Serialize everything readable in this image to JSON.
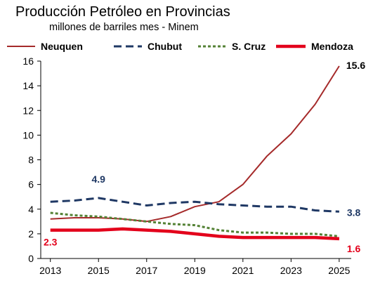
{
  "chart_data": {
    "type": "line",
    "title": "Producción Petróleo en Provincias",
    "subtitle": "millones de barriles mes - Minem",
    "x": [
      2013,
      2014,
      2015,
      2016,
      2017,
      2018,
      2019,
      2020,
      2021,
      2022,
      2023,
      2024,
      2025
    ],
    "xticks": [
      "2013",
      "2015",
      "2017",
      "2019",
      "2021",
      "2023",
      "2025"
    ],
    "yticks": [
      "0",
      "2",
      "4",
      "6",
      "8",
      "10",
      "12",
      "14",
      "16"
    ],
    "ylim": [
      0,
      16
    ],
    "xlim": [
      2012.6,
      2025.5
    ],
    "legend_position": "top",
    "grid": false,
    "series": [
      {
        "name": "Neuquen",
        "color": "#a52a2a",
        "style": "solid",
        "values": [
          3.2,
          3.3,
          3.3,
          3.2,
          3.0,
          3.4,
          4.2,
          4.6,
          6.0,
          8.3,
          10.1,
          12.5,
          15.6
        ]
      },
      {
        "name": "Chubut",
        "color": "#1f3864",
        "style": "dashed",
        "values": [
          4.6,
          4.7,
          4.9,
          4.6,
          4.3,
          4.5,
          4.6,
          4.4,
          4.3,
          4.2,
          4.2,
          3.9,
          3.8
        ]
      },
      {
        "name": "S. Cruz",
        "color": "#548235",
        "style": "dotted",
        "values": [
          3.7,
          3.5,
          3.4,
          3.2,
          3.0,
          2.8,
          2.7,
          2.3,
          2.1,
          2.1,
          2.0,
          2.0,
          1.8
        ]
      },
      {
        "name": "Mendoza",
        "color": "#e3001b",
        "style": "thick",
        "values": [
          2.3,
          2.3,
          2.3,
          2.4,
          2.3,
          2.2,
          2.0,
          1.8,
          1.7,
          1.7,
          1.7,
          1.7,
          1.6
        ]
      }
    ],
    "annotations": [
      {
        "text": "4.9",
        "series": "Chubut",
        "x": 2015,
        "y": 4.9,
        "color": "#1f3864"
      },
      {
        "text": "2.3",
        "series": "Mendoza",
        "x": 2013,
        "y": 2.3,
        "color": "#e3001b"
      },
      {
        "text": "15.6",
        "series": "Neuquen",
        "x": 2025,
        "y": 15.6,
        "color": "#000000"
      },
      {
        "text": "3.8",
        "series": "Chubut",
        "x": 2025,
        "y": 3.8,
        "color": "#1f3864"
      },
      {
        "text": "1.6",
        "series": "Mendoza",
        "x": 2025,
        "y": 1.6,
        "color": "#e3001b"
      }
    ]
  }
}
